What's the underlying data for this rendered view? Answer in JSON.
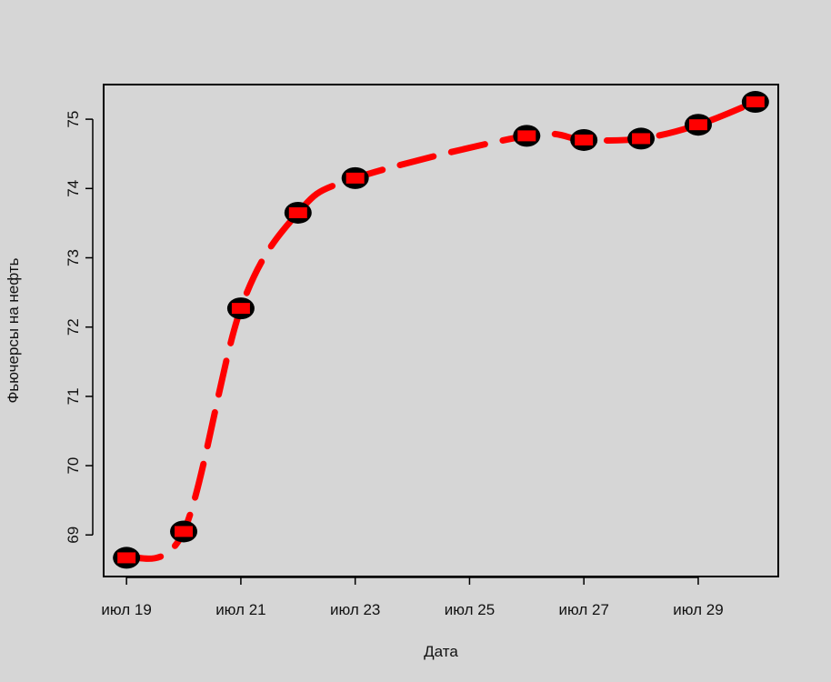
{
  "chart_data": {
    "type": "line",
    "title": "",
    "xlabel": "Дата",
    "ylabel": "Фьючерсы на нефть",
    "x": [
      "июл 19",
      "июл 20",
      "июл 21",
      "июл 22",
      "июл 23",
      "июл 26",
      "июл 27",
      "июл 28",
      "июл 29",
      "июл 30"
    ],
    "x_day": [
      19,
      20,
      21,
      22,
      23,
      26,
      27,
      28,
      29,
      30
    ],
    "series": [
      {
        "values": [
          68.67,
          69.05,
          72.27,
          73.65,
          74.15,
          74.76,
          74.7,
          74.72,
          74.92,
          75.25
        ]
      }
    ],
    "x_ticks": [
      "июл 19",
      "июл 21",
      "июл 23",
      "июл 25",
      "июл 27",
      "июл 29"
    ],
    "x_tick_days": [
      19,
      21,
      23,
      25,
      27,
      29
    ],
    "y_ticks": [
      "69",
      "70",
      "71",
      "72",
      "73",
      "74",
      "75"
    ],
    "xlim_days": [
      18.6,
      30.4
    ],
    "ylim": [
      68.4,
      75.5
    ],
    "line_color": "#ff0000",
    "marker_color": "#000000",
    "marker_fill": "#ff0000",
    "line_style": "dashed",
    "grid": false,
    "legend": "none"
  }
}
